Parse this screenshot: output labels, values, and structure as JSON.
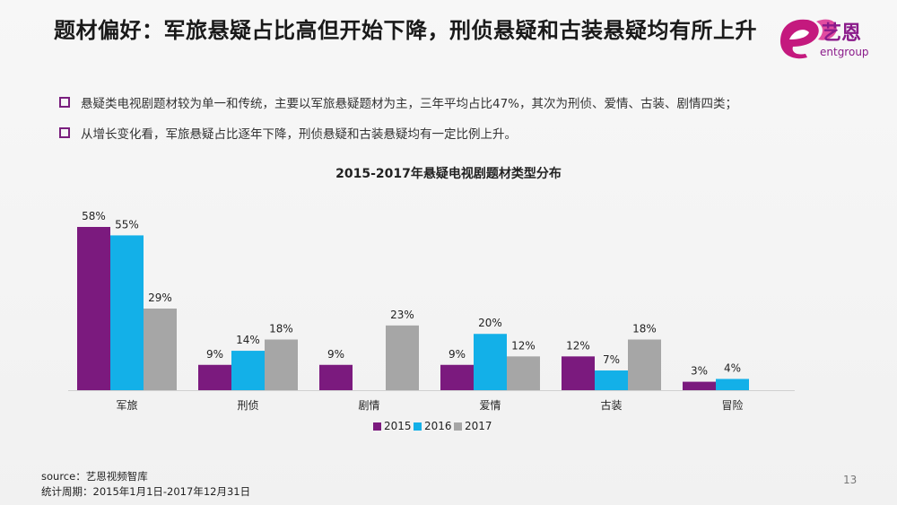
{
  "header": {
    "title": "题材偏好：军旅悬疑占比高但开始下降，刑侦悬疑和古装悬疑均有所上升",
    "logo": {
      "cn": "艺恩",
      "en": "entgroup",
      "letter": "e"
    }
  },
  "bullets": [
    "悬疑类电视剧题材较为单一和传统，主要以军旅悬疑题材为主，三年平均占比47%，其次为刑侦、爱情、古装、剧情四类；",
    "从增长变化看，军旅悬疑占比逐年下降，刑侦悬疑和古装悬疑均有一定比例上升。"
  ],
  "chart_data": {
    "type": "bar",
    "title": "2015-2017年悬疑电视剧题材类型分布",
    "categories": [
      "军旅",
      "刑侦",
      "剧情",
      "爱情",
      "古装",
      "冒险"
    ],
    "series": [
      {
        "name": "2015",
        "color": "#7b1a7e",
        "values": [
          58,
          9,
          9,
          9,
          12,
          3
        ]
      },
      {
        "name": "2016",
        "color": "#13b0e8",
        "values": [
          55,
          14,
          null,
          20,
          7,
          4
        ]
      },
      {
        "name": "2017",
        "color": "#a6a6a6",
        "values": [
          29,
          18,
          23,
          12,
          18,
          null
        ]
      }
    ],
    "value_suffix": "%",
    "ylim": [
      0,
      60
    ],
    "grid": false,
    "legend_position": "bottom"
  },
  "footer": {
    "source": "source：艺恩视频智库",
    "period": "统计周期：2015年1月1日-2017年12月31日"
  },
  "page_number": "13"
}
